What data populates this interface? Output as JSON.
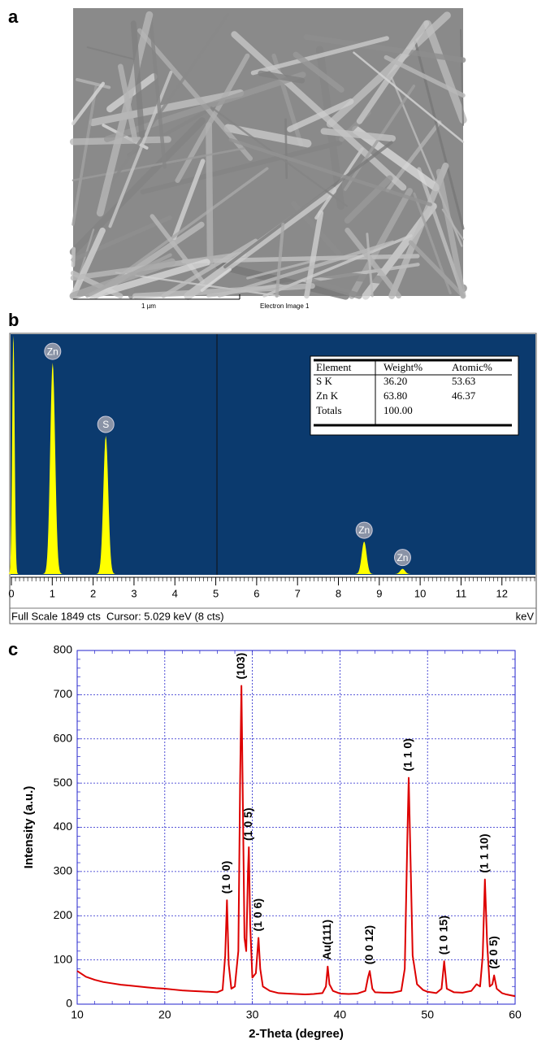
{
  "chart_data": [
    {
      "type": "image",
      "panel": "a",
      "scale_bar": "1 µm",
      "caption": "Electron Image 1"
    },
    {
      "type": "spectrum",
      "panel": "b",
      "color": "#ffff00",
      "background": "#0b3a6e",
      "xlim": [
        0,
        12.8
      ],
      "xticks": [
        0,
        1,
        2,
        3,
        4,
        5,
        6,
        7,
        8,
        9,
        10,
        11,
        12
      ],
      "ylim": [
        0,
        1849
      ],
      "peaks": [
        {
          "label": null,
          "x": 0.05,
          "height": 1849
        },
        {
          "label": "Zn",
          "x": 1.01,
          "height": 1640
        },
        {
          "label": "S",
          "x": 2.31,
          "height": 1073
        },
        {
          "label": "Zn",
          "x": 8.63,
          "height": 252
        },
        {
          "label": "Zn",
          "x": 9.57,
          "height": 40
        }
      ],
      "cursor": 5.029,
      "status": "Full Scale 1849 cts  Cursor: 5.029 keV (8 cts)",
      "unit": "keV",
      "table": {
        "header": [
          "Element",
          "Weight%",
          "Atomic%"
        ],
        "rows": [
          [
            "S K",
            "36.20",
            "53.63"
          ],
          [
            "Zn K",
            "63.80",
            "46.37"
          ],
          [
            "Totals",
            "100.00",
            null
          ]
        ]
      }
    },
    {
      "type": "line",
      "panel": "c",
      "color": "#dd0000",
      "grid": true,
      "xlabel": "2-Theta (degree)",
      "ylabel": "Intensity (a.u.)",
      "xlim": [
        10,
        60
      ],
      "xticks": [
        10,
        20,
        30,
        40,
        50,
        60
      ],
      "ylim": [
        0,
        800
      ],
      "yticks": [
        0,
        100,
        200,
        300,
        400,
        500,
        600,
        700,
        800
      ],
      "x": [
        10,
        11,
        12,
        13,
        14,
        15,
        16,
        17,
        18,
        19,
        20,
        21,
        22,
        23,
        24,
        25,
        26,
        26.6,
        26.9,
        27.1,
        27.3,
        27.6,
        28.0,
        28.4,
        28.6,
        28.75,
        28.9,
        29.1,
        29.3,
        29.5,
        29.6,
        29.75,
        30.0,
        30.4,
        30.7,
        30.9,
        31.2,
        32,
        33,
        34,
        35,
        36,
        37,
        38,
        38.4,
        38.6,
        38.8,
        39.2,
        40,
        41,
        42,
        42.9,
        43.2,
        43.4,
        43.7,
        44,
        45,
        46,
        47,
        47.4,
        47.7,
        47.85,
        48.0,
        48.3,
        48.8,
        49.5,
        50,
        51,
        51.6,
        51.9,
        52.2,
        53,
        54,
        55,
        55.6,
        56.0,
        56.3,
        56.55,
        56.8,
        57.1,
        57.4,
        57.6,
        57.9,
        58.5,
        59,
        60
      ],
      "values": [
        75,
        62,
        55,
        50,
        47,
        44,
        42,
        40,
        38,
        36,
        35,
        33,
        31,
        30,
        29,
        28,
        27,
        32,
        110,
        235,
        90,
        35,
        40,
        120,
        500,
        720,
        480,
        150,
        120,
        300,
        355,
        180,
        60,
        70,
        150,
        80,
        40,
        30,
        25,
        24,
        23,
        22,
        23,
        25,
        40,
        85,
        45,
        30,
        24,
        23,
        24,
        30,
        60,
        75,
        35,
        27,
        26,
        26,
        30,
        80,
        380,
        512,
        380,
        110,
        45,
        32,
        28,
        25,
        35,
        97,
        35,
        27,
        26,
        30,
        45,
        40,
        110,
        282,
        140,
        40,
        45,
        65,
        35,
        25,
        22,
        18
      ],
      "annotations": [
        {
          "text": "(1 0 0)",
          "x": 27.1,
          "y": 235
        },
        {
          "text": "(103)",
          "x": 28.75,
          "y": 720
        },
        {
          "text": "(1 0 5)",
          "x": 29.6,
          "y": 355
        },
        {
          "text": "(1 0 6)",
          "x": 30.7,
          "y": 150
        },
        {
          "text": "Au(111)",
          "x": 38.6,
          "y": 85
        },
        {
          "text": "(0 0 12)",
          "x": 43.4,
          "y": 75
        },
        {
          "text": "(1 1 0)",
          "x": 47.85,
          "y": 512
        },
        {
          "text": "(1 0 15)",
          "x": 51.9,
          "y": 97
        },
        {
          "text": "(1 1 10)",
          "x": 56.55,
          "y": 282
        },
        {
          "text": "(2 0 5)",
          "x": 57.6,
          "y": 65
        }
      ]
    }
  ]
}
